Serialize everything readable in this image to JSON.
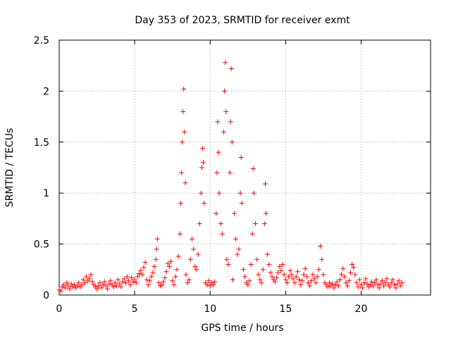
{
  "chart_data": {
    "type": "scatter",
    "title": "Day 353 of 2023, SRMTID for receiver exmt",
    "xlabel": "GPS time / hours",
    "ylabel": "SRMTID / TECUs",
    "xlim": [
      0,
      24.6
    ],
    "ylim": [
      0,
      2.5
    ],
    "x_ticks": [
      0,
      5,
      10,
      15,
      20
    ],
    "y_ticks": [
      0,
      0.5,
      1,
      1.5,
      2,
      2.5
    ],
    "x_tick_labels": [
      "0",
      "5",
      "10",
      "15",
      "20"
    ],
    "y_tick_labels": [
      "0",
      "0.5",
      "1",
      "1.5",
      "2",
      "2.5"
    ],
    "grid": true,
    "marker": "plus",
    "color": "#ff0000",
    "series": [
      {
        "name": "SRMTID",
        "points": [
          [
            0.0,
            0.05
          ],
          [
            0.1,
            0.04
          ],
          [
            0.2,
            0.08
          ],
          [
            0.3,
            0.1
          ],
          [
            0.4,
            0.07
          ],
          [
            0.5,
            0.12
          ],
          [
            0.6,
            0.09
          ],
          [
            0.7,
            0.06
          ],
          [
            0.8,
            0.11
          ],
          [
            0.9,
            0.08
          ],
          [
            1.0,
            0.1
          ],
          [
            1.1,
            0.07
          ],
          [
            1.2,
            0.09
          ],
          [
            1.3,
            0.12
          ],
          [
            1.4,
            0.08
          ],
          [
            1.5,
            0.1
          ],
          [
            1.6,
            0.15
          ],
          [
            1.7,
            0.12
          ],
          [
            1.8,
            0.18
          ],
          [
            1.9,
            0.14
          ],
          [
            2.0,
            0.16
          ],
          [
            2.1,
            0.2
          ],
          [
            2.2,
            0.13
          ],
          [
            2.3,
            0.1
          ],
          [
            2.4,
            0.08
          ],
          [
            2.5,
            0.06
          ],
          [
            2.6,
            0.09
          ],
          [
            2.7,
            0.12
          ],
          [
            2.8,
            0.07
          ],
          [
            2.9,
            0.1
          ],
          [
            3.0,
            0.13
          ],
          [
            3.1,
            0.09
          ],
          [
            3.2,
            0.06
          ],
          [
            3.3,
            0.11
          ],
          [
            3.4,
            0.14
          ],
          [
            3.5,
            0.1
          ],
          [
            3.6,
            0.08
          ],
          [
            3.7,
            0.12
          ],
          [
            3.8,
            0.09
          ],
          [
            3.9,
            0.15
          ],
          [
            4.0,
            0.11
          ],
          [
            4.1,
            0.08
          ],
          [
            4.2,
            0.13
          ],
          [
            4.3,
            0.16
          ],
          [
            4.4,
            0.12
          ],
          [
            4.5,
            0.18
          ],
          [
            4.6,
            0.14
          ],
          [
            4.7,
            0.1
          ],
          [
            4.8,
            0.17
          ],
          [
            4.9,
            0.13
          ],
          [
            5.0,
            0.15
          ],
          [
            5.1,
            0.12
          ],
          [
            5.2,
            0.18
          ],
          [
            5.3,
            0.21
          ],
          [
            5.4,
            0.24
          ],
          [
            5.5,
            0.2
          ],
          [
            5.6,
            0.27
          ],
          [
            5.7,
            0.32
          ],
          [
            5.8,
            0.15
          ],
          [
            5.9,
            0.1
          ],
          [
            6.0,
            0.14
          ],
          [
            6.1,
            0.18
          ],
          [
            6.2,
            0.22
          ],
          [
            6.3,
            0.28
          ],
          [
            6.4,
            0.35
          ],
          [
            6.45,
            0.45
          ],
          [
            6.5,
            0.55
          ],
          [
            6.6,
            0.12
          ],
          [
            6.7,
            0.09
          ],
          [
            6.8,
            0.1
          ],
          [
            6.9,
            0.13
          ],
          [
            7.0,
            0.17
          ],
          [
            7.1,
            0.23
          ],
          [
            7.2,
            0.31
          ],
          [
            7.3,
            0.28
          ],
          [
            7.4,
            0.33
          ],
          [
            7.5,
            0.14
          ],
          [
            7.6,
            0.1
          ],
          [
            7.7,
            0.18
          ],
          [
            7.8,
            0.25
          ],
          [
            7.9,
            0.38
          ],
          [
            8.0,
            0.6
          ],
          [
            8.05,
            0.9
          ],
          [
            8.1,
            1.2
          ],
          [
            8.15,
            1.5
          ],
          [
            8.2,
            1.8
          ],
          [
            8.25,
            2.02
          ],
          [
            8.3,
            1.6
          ],
          [
            8.35,
            1.1
          ],
          [
            8.4,
            0.2
          ],
          [
            8.5,
            0.12
          ],
          [
            8.6,
            0.15
          ],
          [
            8.7,
            0.35
          ],
          [
            8.8,
            0.55
          ],
          [
            8.9,
            0.45
          ],
          [
            9.0,
            0.28
          ],
          [
            9.1,
            0.25
          ],
          [
            9.2,
            0.4
          ],
          [
            9.3,
            0.7
          ],
          [
            9.4,
            1.0
          ],
          [
            9.45,
            1.25
          ],
          [
            9.5,
            1.44
          ],
          [
            9.55,
            1.3
          ],
          [
            9.6,
            0.9
          ],
          [
            9.7,
            0.12
          ],
          [
            9.8,
            0.1
          ],
          [
            9.9,
            0.14
          ],
          [
            10.0,
            0.09
          ],
          [
            10.1,
            0.12
          ],
          [
            10.2,
            0.1
          ],
          [
            10.3,
            0.13
          ],
          [
            10.4,
            0.8
          ],
          [
            10.45,
            1.2
          ],
          [
            10.5,
            1.7
          ],
          [
            10.55,
            1.4
          ],
          [
            10.6,
            1.0
          ],
          [
            10.7,
            0.7
          ],
          [
            10.8,
            0.6
          ],
          [
            10.9,
            1.6
          ],
          [
            10.95,
            2.0
          ],
          [
            11.0,
            2.28
          ],
          [
            11.05,
            1.8
          ],
          [
            11.1,
            0.35
          ],
          [
            11.2,
            0.3
          ],
          [
            11.3,
            1.2
          ],
          [
            11.35,
            1.7
          ],
          [
            11.4,
            2.22
          ],
          [
            11.45,
            1.5
          ],
          [
            11.5,
            0.15
          ],
          [
            11.6,
            0.8
          ],
          [
            11.7,
            0.55
          ],
          [
            11.8,
            0.4
          ],
          [
            11.9,
            0.45
          ],
          [
            12.0,
            1.0
          ],
          [
            12.05,
            1.35
          ],
          [
            12.1,
            0.9
          ],
          [
            12.2,
            0.25
          ],
          [
            12.3,
            0.18
          ],
          [
            12.4,
            0.12
          ],
          [
            12.5,
            0.1
          ],
          [
            12.6,
            0.14
          ],
          [
            12.7,
            0.3
          ],
          [
            12.8,
            0.6
          ],
          [
            12.85,
            1.24
          ],
          [
            12.9,
            1.0
          ],
          [
            13.0,
            0.7
          ],
          [
            13.1,
            0.35
          ],
          [
            13.2,
            0.2
          ],
          [
            13.3,
            0.15
          ],
          [
            13.4,
            0.12
          ],
          [
            13.5,
            0.25
          ],
          [
            13.6,
            0.7
          ],
          [
            13.65,
            1.09
          ],
          [
            13.7,
            0.8
          ],
          [
            13.8,
            0.4
          ],
          [
            13.9,
            0.3
          ],
          [
            14.0,
            0.22
          ],
          [
            14.1,
            0.18
          ],
          [
            14.2,
            0.15
          ],
          [
            14.3,
            0.13
          ],
          [
            14.4,
            0.17
          ],
          [
            14.5,
            0.22
          ],
          [
            14.6,
            0.28
          ],
          [
            14.7,
            0.24
          ],
          [
            14.8,
            0.3
          ],
          [
            14.9,
            0.2
          ],
          [
            15.0,
            0.15
          ],
          [
            15.1,
            0.12
          ],
          [
            15.2,
            0.18
          ],
          [
            15.3,
            0.24
          ],
          [
            15.4,
            0.2
          ],
          [
            15.5,
            0.16
          ],
          [
            15.6,
            0.12
          ],
          [
            15.7,
            0.18
          ],
          [
            15.8,
            0.23
          ],
          [
            15.9,
            0.15
          ],
          [
            16.0,
            0.1
          ],
          [
            16.1,
            0.14
          ],
          [
            16.2,
            0.2
          ],
          [
            16.3,
            0.26
          ],
          [
            16.4,
            0.18
          ],
          [
            16.5,
            0.12
          ],
          [
            16.6,
            0.09
          ],
          [
            16.7,
            0.14
          ],
          [
            16.8,
            0.2
          ],
          [
            16.9,
            0.16
          ],
          [
            17.0,
            0.12
          ],
          [
            17.1,
            0.18
          ],
          [
            17.2,
            0.25
          ],
          [
            17.3,
            0.48
          ],
          [
            17.4,
            0.35
          ],
          [
            17.5,
            0.2
          ],
          [
            17.6,
            0.12
          ],
          [
            17.7,
            0.1
          ],
          [
            17.8,
            0.08
          ],
          [
            17.9,
            0.12
          ],
          [
            18.0,
            0.09
          ],
          [
            18.1,
            0.11
          ],
          [
            18.2,
            0.07
          ],
          [
            18.3,
            0.1
          ],
          [
            18.4,
            0.13
          ],
          [
            18.5,
            0.09
          ],
          [
            18.6,
            0.15
          ],
          [
            18.7,
            0.2
          ],
          [
            18.8,
            0.26
          ],
          [
            18.9,
            0.18
          ],
          [
            19.0,
            0.12
          ],
          [
            19.1,
            0.09
          ],
          [
            19.2,
            0.14
          ],
          [
            19.3,
            0.22
          ],
          [
            19.4,
            0.3
          ],
          [
            19.5,
            0.27
          ],
          [
            19.6,
            0.2
          ],
          [
            19.7,
            0.12
          ],
          [
            19.8,
            0.08
          ],
          [
            19.9,
            0.15
          ],
          [
            20.0,
            0.1
          ],
          [
            20.1,
            0.07
          ],
          [
            20.2,
            0.12
          ],
          [
            20.3,
            0.16
          ],
          [
            20.4,
            0.11
          ],
          [
            20.5,
            0.08
          ],
          [
            20.6,
            0.1
          ],
          [
            20.7,
            0.13
          ],
          [
            20.8,
            0.09
          ],
          [
            20.9,
            0.12
          ],
          [
            21.0,
            0.15
          ],
          [
            21.1,
            0.1
          ],
          [
            21.2,
            0.07
          ],
          [
            21.3,
            0.11
          ],
          [
            21.4,
            0.14
          ],
          [
            21.5,
            0.09
          ],
          [
            21.6,
            0.12
          ],
          [
            21.7,
            0.16
          ],
          [
            21.8,
            0.1
          ],
          [
            21.9,
            0.08
          ],
          [
            22.0,
            0.12
          ],
          [
            22.1,
            0.15
          ],
          [
            22.2,
            0.1
          ],
          [
            22.3,
            0.07
          ],
          [
            22.4,
            0.11
          ],
          [
            22.5,
            0.14
          ],
          [
            22.6,
            0.09
          ],
          [
            22.7,
            0.12
          ]
        ]
      }
    ]
  }
}
